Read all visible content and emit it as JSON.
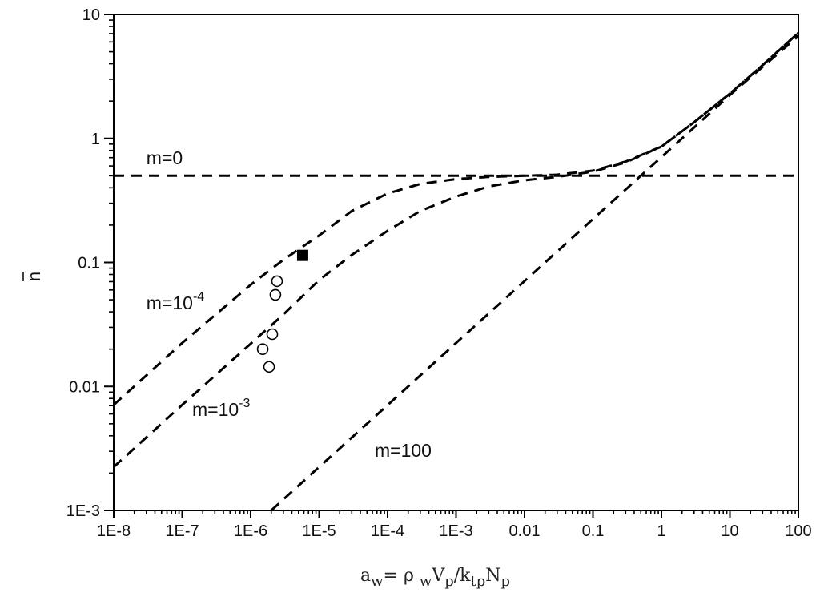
{
  "chart_data": {
    "type": "line",
    "title": "",
    "xlabel": "a_w = ρ_w V_p / k_tp N_p",
    "xlabel_parts": [
      {
        "t": "a",
        "sub": false
      },
      {
        "t": "w",
        "sub": true
      },
      {
        "t": "= ρ ",
        "sub": false
      },
      {
        "t": "w",
        "sub": true
      },
      {
        "t": "V",
        "sub": false
      },
      {
        "t": "p",
        "sub": true
      },
      {
        "t": "/k",
        "sub": false
      },
      {
        "t": "tp",
        "sub": true
      },
      {
        "t": "N",
        "sub": false
      },
      {
        "t": "p",
        "sub": true
      }
    ],
    "ylabel": "n̄",
    "xscale": "log",
    "yscale": "log",
    "xlim": [
      1e-08,
      100
    ],
    "ylim": [
      0.001,
      10
    ],
    "x_ticks": [
      {
        "value": 1e-08,
        "label": "1E-8"
      },
      {
        "value": 1e-07,
        "label": "1E-7"
      },
      {
        "value": 1e-06,
        "label": "1E-6"
      },
      {
        "value": 1e-05,
        "label": "1E-5"
      },
      {
        "value": 0.0001,
        "label": "1E-4"
      },
      {
        "value": 0.001,
        "label": "1E-3"
      },
      {
        "value": 0.01,
        "label": "0.01"
      },
      {
        "value": 0.1,
        "label": "0.1"
      },
      {
        "value": 1,
        "label": "1"
      },
      {
        "value": 10,
        "label": "10"
      },
      {
        "value": 100,
        "label": "100"
      }
    ],
    "y_ticks": [
      {
        "value": 0.001,
        "label": "1E-3"
      },
      {
        "value": 0.01,
        "label": "0.01"
      },
      {
        "value": 0.1,
        "label": "0.1"
      },
      {
        "value": 1,
        "label": "1"
      },
      {
        "value": 10,
        "label": "10"
      }
    ],
    "grid": false,
    "legend": "none (curves labeled inline)",
    "x": [
      1e-08,
      1e-07,
      1e-06,
      1e-05,
      0.0001,
      0.001,
      0.01,
      0.1,
      1,
      10,
      100
    ],
    "series": [
      {
        "name": "m=0",
        "style": "dashed",
        "x": [
          1e-08,
          0.01,
          100
        ],
        "values": [
          0.5,
          0.5,
          0.5
        ]
      },
      {
        "name": "m=10^-4",
        "style": "dashed",
        "x": [
          1e-08,
          1e-07,
          1e-06,
          3e-06,
          1e-05,
          3e-05,
          0.0001,
          0.0003,
          0.001,
          0.003,
          0.01,
          0.03,
          0.1,
          0.3,
          1,
          3,
          10,
          30,
          100
        ],
        "values": [
          0.0071,
          0.0224,
          0.066,
          0.105,
          0.165,
          0.26,
          0.36,
          0.43,
          0.47,
          0.49,
          0.5,
          0.51,
          0.55,
          0.65,
          0.86,
          1.35,
          2.3,
          3.9,
          7.1
        ]
      },
      {
        "name": "m=10^-3",
        "style": "dashed",
        "x": [
          1e-08,
          1e-07,
          1e-06,
          3e-06,
          1e-05,
          3e-05,
          0.0001,
          0.0003,
          0.001,
          0.003,
          0.01,
          0.03,
          0.1,
          0.3,
          1,
          3,
          10,
          30,
          100
        ],
        "values": [
          0.00224,
          0.0071,
          0.0221,
          0.038,
          0.072,
          0.115,
          0.18,
          0.26,
          0.34,
          0.41,
          0.46,
          0.49,
          0.54,
          0.64,
          0.86,
          1.35,
          2.3,
          3.9,
          7.1
        ]
      },
      {
        "name": "m=100",
        "style": "dashed",
        "x": [
          2e-06,
          1e-05,
          0.0001,
          0.001,
          0.01,
          0.1,
          1,
          10,
          100
        ],
        "values": [
          0.001,
          0.00224,
          0.00707,
          0.0224,
          0.0707,
          0.224,
          0.707,
          2.24,
          6.7
        ]
      },
      {
        "name": "experimental (open circles)",
        "style": "open-circle",
        "x": [
          2.43e-06,
          2.3e-06,
          2.07e-06,
          1.5e-06,
          1.86e-06
        ],
        "values": [
          0.0706,
          0.0548,
          0.0264,
          0.02,
          0.0144
        ]
      },
      {
        "name": "experimental (filled square)",
        "style": "filled-square",
        "x": [
          5.75e-06
        ],
        "values": [
          0.114
        ]
      }
    ],
    "annotations": [
      {
        "text": "m=0",
        "x": 3e-08,
        "y": 0.62
      },
      {
        "text": "m=10",
        "sup": "-4",
        "x": 3e-08,
        "y": 0.042
      },
      {
        "text": "m=10",
        "sup": "-3",
        "x": 1.4e-07,
        "y": 0.0058
      },
      {
        "text": "m=100",
        "x": 6.5e-05,
        "y": 0.0027
      }
    ]
  }
}
